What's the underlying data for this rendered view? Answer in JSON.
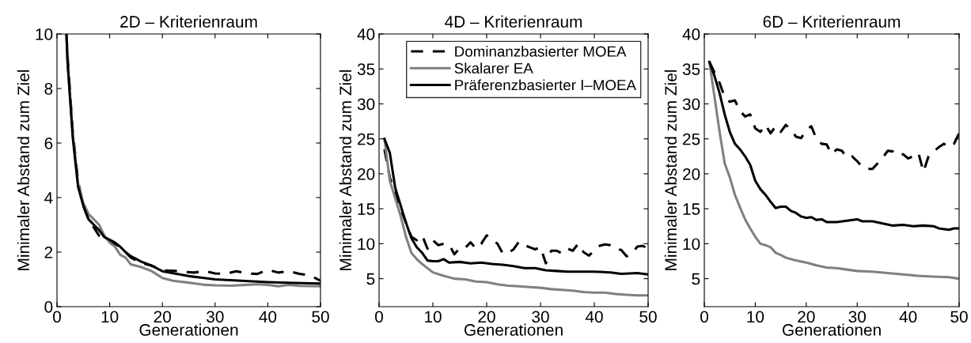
{
  "chart_data": [
    {
      "type": "line",
      "title": "2D – Kriterienraum",
      "xlabel": "Generationen",
      "ylabel": "Minimaler Abstand zum Ziel",
      "xlim": [
        0,
        50
      ],
      "ylim": [
        0,
        10
      ],
      "xticks": [
        0,
        10,
        20,
        30,
        40,
        50
      ],
      "yticks": [
        0,
        2,
        4,
        6,
        8,
        10
      ],
      "grid": false,
      "legend": false,
      "series": [
        {
          "color": "#000000",
          "line_style": "dashed",
          "x": [
            1.8,
            2,
            3,
            4,
            5,
            6,
            7,
            8,
            9,
            10,
            11,
            12,
            13,
            14,
            15,
            16,
            18,
            20,
            22,
            24,
            26,
            28,
            30,
            32,
            34,
            36,
            38,
            40,
            42,
            44,
            46,
            48,
            50
          ],
          "values": [
            10,
            9.2,
            6.4,
            4.6,
            3.7,
            3.2,
            2.9,
            2.6,
            2.5,
            2.4,
            2.3,
            2.2,
            2.0,
            1.8,
            1.7,
            1.6,
            1.5,
            1.33,
            1.32,
            1.28,
            1.25,
            1.3,
            1.22,
            1.2,
            1.3,
            1.22,
            1.2,
            1.35,
            1.25,
            1.3,
            1.2,
            1.15,
            0.95
          ]
        },
        {
          "color": "#808080",
          "line_style": "solid",
          "x": [
            1.8,
            2,
            3,
            4,
            5,
            6,
            7,
            8,
            9,
            10,
            11,
            12,
            13,
            14,
            15,
            16,
            18,
            20,
            22,
            25,
            28,
            30,
            33,
            36,
            38,
            40,
            42,
            44,
            46,
            50
          ],
          "values": [
            10,
            9.0,
            6.3,
            4.5,
            3.8,
            3.4,
            3.2,
            3.0,
            2.6,
            2.35,
            2.2,
            1.9,
            1.8,
            1.55,
            1.5,
            1.45,
            1.3,
            1.05,
            0.95,
            0.88,
            0.8,
            0.78,
            0.77,
            0.8,
            0.82,
            0.8,
            0.75,
            0.8,
            0.76,
            0.75
          ]
        },
        {
          "color": "#000000",
          "line_style": "solid",
          "x": [
            1.8,
            2,
            3,
            4,
            5,
            6,
            7,
            8,
            9,
            10,
            11,
            12,
            13,
            14,
            15,
            16,
            18,
            20,
            25,
            30,
            35,
            40,
            45,
            50
          ],
          "values": [
            10,
            9.0,
            6.2,
            4.4,
            3.7,
            3.2,
            3.0,
            2.8,
            2.55,
            2.45,
            2.35,
            2.2,
            2.0,
            1.85,
            1.75,
            1.65,
            1.5,
            1.3,
            1.12,
            1.0,
            0.95,
            0.9,
            0.87,
            0.85
          ]
        }
      ]
    },
    {
      "type": "line",
      "title": "4D – Kriterienraum",
      "xlabel": "Generationen",
      "ylabel": "Minimaler Abstand zum Ziel",
      "xlim": [
        0,
        50
      ],
      "ylim": [
        1,
        40
      ],
      "xticks": [
        0,
        10,
        20,
        30,
        40,
        50
      ],
      "yticks": [
        5,
        10,
        15,
        20,
        25,
        30,
        35,
        40
      ],
      "grid": false,
      "legend": "top right",
      "series": [
        {
          "name": "Dominanzbasierter MOEA",
          "color": "#000000",
          "line_style": "dashed",
          "x": [
            1,
            2,
            3,
            4,
            5,
            6,
            7,
            8,
            9,
            10,
            11,
            12,
            13,
            14,
            15,
            16,
            17,
            18,
            19,
            20,
            21,
            22,
            23,
            24,
            25,
            26,
            27,
            28,
            29,
            30,
            31,
            32,
            33,
            34,
            35,
            36,
            37,
            38,
            39,
            40,
            41,
            42,
            43,
            44,
            45,
            46,
            47,
            48,
            49,
            50
          ],
          "values": [
            23.5,
            19.5,
            17,
            15,
            13,
            11,
            10.5,
            11.2,
            9.3,
            10.5,
            9.8,
            10,
            9.9,
            8.5,
            9.4,
            9.4,
            10.2,
            9.3,
            10,
            11.2,
            10.6,
            10,
            8.6,
            8.7,
            9.2,
            10.3,
            9.8,
            9.5,
            9.2,
            9.5,
            7.2,
            9,
            9,
            8.6,
            9.3,
            9,
            10,
            8.8,
            8.3,
            9,
            9.7,
            9.9,
            9.8,
            9.3,
            9.1,
            8.2,
            8.6,
            9.6,
            9.7,
            9.3
          ]
        },
        {
          "name": "Skalarer EA",
          "color": "#808080",
          "line_style": "solid",
          "x": [
            1,
            2,
            3,
            4,
            5,
            6,
            7,
            8,
            9,
            10,
            12,
            14,
            16,
            18,
            20,
            22,
            24,
            26,
            28,
            30,
            32,
            34,
            36,
            38,
            40,
            42,
            44,
            46,
            48,
            50
          ],
          "values": [
            25,
            19,
            16.5,
            14,
            11,
            8.7,
            7.8,
            7.1,
            6.5,
            5.9,
            5.4,
            5.0,
            4.9,
            4.6,
            4.5,
            4.2,
            4.0,
            3.9,
            3.8,
            3.7,
            3.5,
            3.4,
            3.3,
            3.1,
            3.0,
            3.0,
            2.8,
            2.7,
            2.6,
            2.6
          ]
        },
        {
          "name": "Präferenzbasierter I–MOEA",
          "color": "#000000",
          "line_style": "solid",
          "x": [
            1,
            2,
            3,
            4,
            5,
            6,
            7,
            8,
            9,
            10,
            11,
            12,
            13,
            15,
            17,
            19,
            21,
            23,
            25,
            27,
            29,
            31,
            33,
            35,
            37,
            40,
            43,
            45,
            48,
            50
          ],
          "values": [
            25,
            23,
            18,
            15.5,
            13,
            10.8,
            9.5,
            8.7,
            7.6,
            7.5,
            7.5,
            7.8,
            7.3,
            7.4,
            7.2,
            7.3,
            7.1,
            7.0,
            6.8,
            6.5,
            6.5,
            6.2,
            6.1,
            6.0,
            6.0,
            6.0,
            5.9,
            5.7,
            5.8,
            5.6
          ]
        }
      ]
    },
    {
      "type": "line",
      "title": "6D – Kriterienraum",
      "xlabel": "Generationen",
      "ylabel": "Minimaler Abstand zum Ziel",
      "xlim": [
        0,
        50
      ],
      "ylim": [
        1,
        40
      ],
      "xticks": [
        0,
        10,
        20,
        30,
        40,
        50
      ],
      "yticks": [
        5,
        10,
        15,
        20,
        25,
        30,
        35,
        40
      ],
      "grid": false,
      "legend": false,
      "series": [
        {
          "color": "#000000",
          "line_style": "dashed",
          "x": [
            1,
            2,
            3,
            4,
            5,
            6,
            7,
            8,
            9,
            10,
            11,
            12,
            13,
            14,
            15,
            16,
            17,
            18,
            19,
            20,
            21,
            22,
            23,
            24,
            25,
            26,
            27,
            28,
            29,
            30,
            31,
            32,
            33,
            34,
            35,
            36,
            37,
            38,
            39,
            40,
            41,
            42,
            43,
            44,
            45,
            46,
            47,
            48,
            49,
            50
          ],
          "values": [
            36,
            34.5,
            33,
            31,
            30.3,
            30.5,
            29,
            28.2,
            28.5,
            26.5,
            26,
            27,
            25.8,
            26.8,
            26,
            27,
            26.3,
            25.3,
            25.1,
            26.3,
            26.8,
            25,
            24.3,
            24.2,
            22.8,
            23.5,
            23.3,
            22.3,
            22.5,
            21.8,
            21,
            20.7,
            20.7,
            21.5,
            22.3,
            23.3,
            23.2,
            22.6,
            22.8,
            22.2,
            22.5,
            23,
            20.3,
            22.5,
            23.2,
            23.8,
            24.3,
            23.8,
            24.3,
            25.8
          ]
        },
        {
          "color": "#808080",
          "line_style": "solid",
          "x": [
            1,
            2,
            3,
            4,
            5,
            6,
            7,
            8,
            9,
            10,
            11,
            12,
            13,
            14,
            15,
            16,
            18,
            20,
            22,
            24,
            26,
            28,
            30,
            33,
            36,
            39,
            42,
            45,
            48,
            50
          ],
          "values": [
            36,
            31,
            26,
            21.5,
            19.5,
            17,
            15.2,
            13.5,
            12.2,
            11,
            10,
            9.8,
            9.5,
            8.7,
            8.4,
            8,
            7.6,
            7.3,
            6.9,
            6.6,
            6.5,
            6.3,
            6.1,
            6.0,
            5.8,
            5.6,
            5.4,
            5.3,
            5.2,
            5.0
          ]
        },
        {
          "color": "#000000",
          "line_style": "solid",
          "x": [
            1,
            2,
            3,
            4,
            5,
            6,
            7,
            8,
            9,
            10,
            11,
            12,
            13,
            14,
            15,
            16,
            17,
            18,
            19,
            20,
            21,
            22,
            23,
            24,
            26,
            28,
            30,
            31,
            33,
            35,
            37,
            39,
            41,
            43,
            45,
            46,
            48,
            49,
            50
          ],
          "values": [
            36,
            34,
            31.5,
            28.5,
            26,
            24.3,
            23.5,
            22.5,
            21.3,
            19,
            17.8,
            17,
            16,
            15.1,
            15.3,
            15.3,
            14.7,
            14.4,
            13.9,
            13.7,
            13.8,
            13.4,
            13.5,
            13.1,
            13.1,
            13.3,
            13.5,
            13.2,
            13.2,
            12.9,
            12.6,
            12.7,
            12.5,
            12.6,
            12.5,
            12.2,
            12,
            12.2,
            12.2
          ]
        }
      ]
    }
  ]
}
